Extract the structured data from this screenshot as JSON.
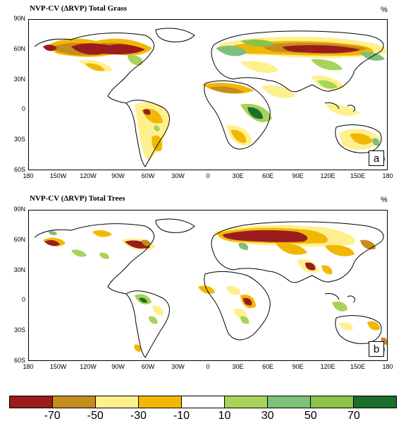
{
  "panels": [
    {
      "title": "NVP-CV (ΔRVP) Total Grass",
      "unit": "%",
      "letter": "a",
      "lat_labels": [
        "90N",
        "60N",
        "30N",
        "0",
        "30S",
        "60S"
      ],
      "lon_labels": [
        "180",
        "150W",
        "120W",
        "90W",
        "60W",
        "30W",
        "0",
        "30E",
        "60E",
        "90E",
        "120E",
        "150E",
        "180"
      ]
    },
    {
      "title": "NVP-CV (ΔRVP) Total Trees",
      "unit": "%",
      "letter": "b",
      "lat_labels": [
        "90N",
        "60N",
        "30N",
        "0",
        "30S",
        "60S"
      ],
      "lon_labels": [
        "180",
        "150W",
        "120W",
        "90W",
        "60W",
        "30W",
        "0",
        "30E",
        "60E",
        "90E",
        "120E",
        "150E",
        "180"
      ]
    }
  ],
  "colorbar": {
    "colors": [
      "#9b1c1c",
      "#c68c1e",
      "#fff08e",
      "#f2b705",
      "#ffffff",
      "#a8d35a",
      "#7cc07a",
      "#8bc34a",
      "#1b6e2b"
    ],
    "labels": [
      "-70",
      "-50",
      "-30",
      "-10",
      "10",
      "30",
      "50",
      "70"
    ]
  }
}
